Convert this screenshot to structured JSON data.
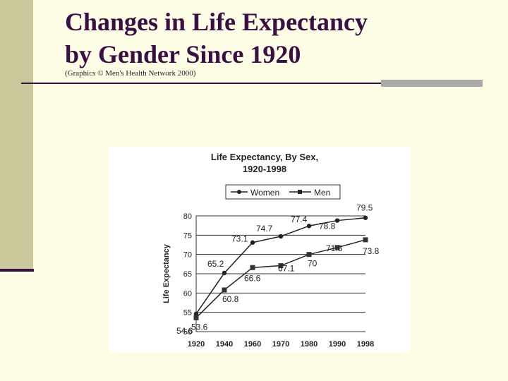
{
  "slide": {
    "title": "Changes in Life Expectancy\nby Gender Since 1920",
    "credit": "(Graphics © Men's Health Network 2000)",
    "accent_color": "#3a1044",
    "band_color": "#c8c89b"
  },
  "chart_data": {
    "type": "line",
    "title_line1": "Life Expectancy, By Sex,",
    "title_line2": "1920-1998",
    "ylabel": "Life Expectancy",
    "xlabel": "",
    "ylim": [
      50,
      80
    ],
    "yticks": [
      "50",
      "55",
      "60",
      "65",
      "70",
      "75",
      "80"
    ],
    "categories": [
      "1920",
      "1940",
      "1960",
      "1970",
      "1980",
      "1990",
      "1998"
    ],
    "legend_position": "top",
    "grid": "horizontal",
    "series": [
      {
        "name": "Women",
        "marker": "circle",
        "values": [
          54.6,
          65.2,
          73.1,
          74.7,
          77.4,
          78.8,
          79.5
        ],
        "labels": [
          "54.6",
          "65.2",
          "73.1",
          "74.7",
          "77.4",
          "78.8",
          "79.5"
        ]
      },
      {
        "name": "Men",
        "marker": "square",
        "values": [
          53.6,
          60.8,
          66.6,
          67.1,
          70,
          71.8,
          73.8
        ],
        "labels": [
          "53.6",
          "60.8",
          "66.6",
          "67.1",
          "70",
          "71.8",
          "73.8"
        ]
      }
    ]
  }
}
